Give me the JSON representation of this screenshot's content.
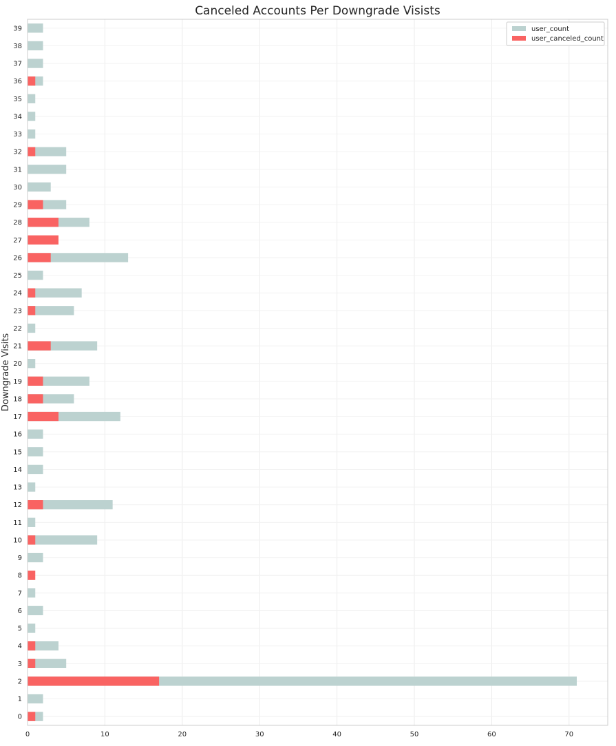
{
  "chart_data": {
    "type": "bar",
    "orientation": "horizontal",
    "stacking": "overlay",
    "title": "Canceled Accounts Per Downgrade Visists",
    "xlabel": "",
    "ylabel": "Downgrade Visits",
    "xlim": [
      0,
      75
    ],
    "xticks": [
      0,
      10,
      20,
      30,
      40,
      50,
      60,
      70
    ],
    "grid": true,
    "legend_position": "top-right",
    "categories": [
      "0",
      "1",
      "2",
      "3",
      "4",
      "5",
      "6",
      "7",
      "8",
      "9",
      "10",
      "11",
      "12",
      "13",
      "14",
      "15",
      "16",
      "17",
      "18",
      "19",
      "20",
      "21",
      "22",
      "23",
      "24",
      "25",
      "26",
      "27",
      "28",
      "29",
      "30",
      "31",
      "32",
      "33",
      "34",
      "35",
      "36",
      "37",
      "38",
      "39"
    ],
    "series": [
      {
        "name": "user_count",
        "color": "#bcd2d0",
        "values": [
          2,
          2,
          71,
          5,
          4,
          1,
          2,
          1,
          0,
          2,
          9,
          1,
          11,
          1,
          2,
          2,
          2,
          12,
          6,
          8,
          1,
          9,
          1,
          6,
          7,
          2,
          13,
          0,
          8,
          5,
          3,
          5,
          5,
          1,
          1,
          1,
          2,
          2,
          2,
          2
        ]
      },
      {
        "name": "user_canceled_count",
        "color": "#f96362",
        "values": [
          1,
          0,
          17,
          1,
          1,
          0,
          0,
          0,
          1,
          0,
          1,
          0,
          2,
          0,
          0,
          0,
          0,
          4,
          2,
          2,
          0,
          3,
          0,
          1,
          1,
          0,
          3,
          4,
          4,
          2,
          0,
          0,
          1,
          0,
          0,
          0,
          1,
          0,
          0,
          0
        ]
      }
    ]
  }
}
